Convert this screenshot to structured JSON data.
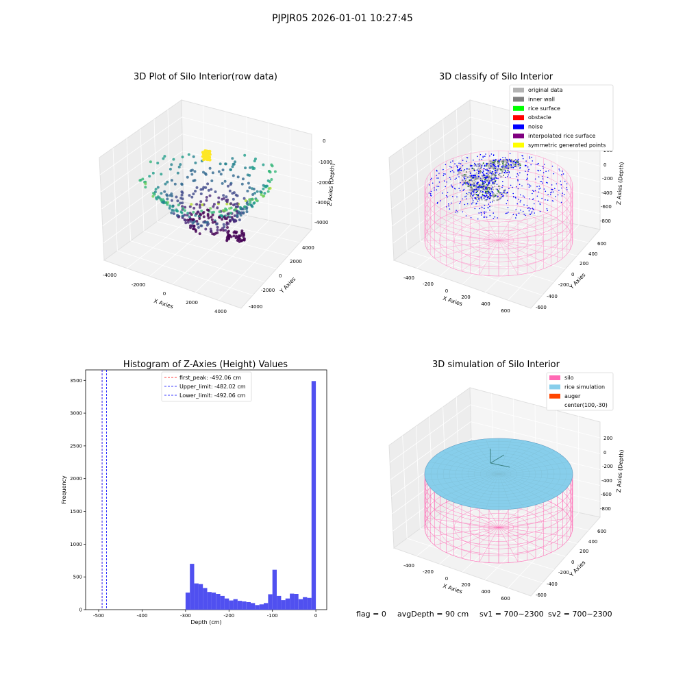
{
  "suptitle": "PJPJR05 2026-01-01 10:27:45",
  "footer": {
    "flag": "flag = 0",
    "avg_depth": "avgDepth = 90 cm",
    "sv1": "sv1 = 700~2300",
    "sv2": "sv2 = 700~2300"
  },
  "colors": {
    "original_data": "#b3b3b3",
    "inner_wall": "#808080",
    "rice_surface": "#00ff00",
    "obstacle": "#ff0000",
    "noise": "#0000ff",
    "interpolated_rice_surface": "#800080",
    "symmetric_generated_points": "#ffff00",
    "silo": "#ff69b4",
    "rice_simulation": "#87ceeb",
    "auger": "#ff4500",
    "histogram_bar": "#5050f0"
  },
  "chart_data": [
    {
      "type": "scatter",
      "title": "3D Plot of Silo Interior(row data)",
      "xlabel": "X Axies",
      "ylabel": "Y Axies",
      "zlabel": "Z Axies (Depth)",
      "x_ticks": [
        "-4000",
        "-2000",
        "0",
        "2000",
        "4000"
      ],
      "y_ticks": [
        "-4000",
        "-2000",
        "0",
        "2000",
        "4000"
      ],
      "z_ticks": [
        "0",
        "-1000",
        "-2000",
        "-3000",
        "-4000"
      ],
      "xlim": [
        -5000,
        5000
      ],
      "ylim": [
        -5000,
        5000
      ],
      "zlim": [
        -4700,
        400
      ],
      "grid": true,
      "colormap": "viridis",
      "series": [
        {
          "points": [
            {
              "x": -1500,
              "y": 0,
              "z": -300
            },
            {
              "x": 1000,
              "y": -500,
              "z": -3200
            },
            {
              "x": -4200,
              "y": 500,
              "z": -2200
            },
            {
              "x": 4000,
              "y": 200,
              "z": -2100
            },
            {
              "x": 2500,
              "y": 1500,
              "z": -4300
            },
            {
              "x": 0,
              "y": 3500,
              "z": -1000
            },
            {
              "x": -2500,
              "y": -2000,
              "z": -3000
            }
          ]
        }
      ]
    },
    {
      "type": "scatter",
      "title": "3D classify of Silo Interior",
      "xlabel": "X Axies",
      "ylabel": "Y Axies",
      "zlabel": "Z Axies (Depth)",
      "x_ticks": [
        "-400",
        "-200",
        "0",
        "200",
        "400",
        "600"
      ],
      "y_ticks": [
        "-600",
        "-400",
        "-200",
        "0",
        "200",
        "400",
        "600"
      ],
      "z_ticks": [
        "200",
        "0",
        "-200",
        "-400",
        "-600",
        "-800"
      ],
      "xlim": [
        -550,
        750
      ],
      "ylim": [
        -650,
        650
      ],
      "zlim": [
        -950,
        350
      ],
      "grid": true,
      "legend_position": "top-right",
      "legend": [
        "original data",
        "inner wall",
        "rice surface",
        "obstacle",
        "noise",
        "interpolated rice surface",
        "symmetric generated points"
      ]
    },
    {
      "type": "bar",
      "title": "Histogram of Z-Axies (Height) Values",
      "xlabel": "Depth (cm)",
      "ylabel": "Frequency",
      "x_ticks": [
        "-500",
        "-400",
        "-300",
        "-200",
        "-100",
        "0"
      ],
      "y_ticks": [
        "0",
        "500",
        "1000",
        "1500",
        "2000",
        "2500",
        "3000",
        "3500"
      ],
      "xlim": [
        -530,
        25
      ],
      "ylim": [
        0,
        3660
      ],
      "bin_width": 10,
      "bin_starts": [
        -300,
        -290,
        -280,
        -270,
        -260,
        -250,
        -240,
        -230,
        -220,
        -210,
        -200,
        -190,
        -180,
        -170,
        -160,
        -150,
        -140,
        -130,
        -120,
        -110,
        -100,
        -90,
        -80,
        -70,
        -60,
        -50,
        -40,
        -30,
        -20,
        -10
      ],
      "values": [
        260,
        700,
        400,
        390,
        330,
        270,
        260,
        240,
        210,
        170,
        140,
        160,
        135,
        125,
        115,
        100,
        70,
        80,
        100,
        235,
        610,
        210,
        145,
        170,
        245,
        240,
        160,
        190,
        180,
        3490
      ],
      "legend_position": "top-center",
      "legend": [
        "first_peak: -492.06 cm",
        "Upper_limit: -482.02 cm",
        "Lower_limit: -492.06 cm"
      ],
      "vlines": [
        {
          "x": -492.06,
          "color": "#ff0000"
        },
        {
          "x": -482.02,
          "color": "#0000ff"
        },
        {
          "x": -492.06,
          "color": "#0000ff"
        }
      ]
    },
    {
      "type": "scatter",
      "title": "3D simulation of Silo Interior",
      "xlabel": "X Axies",
      "ylabel": "Y Axies",
      "zlabel": "Z Axies (Depth)",
      "x_ticks": [
        "-400",
        "-200",
        "0",
        "200",
        "400",
        "600"
      ],
      "y_ticks": [
        "-600",
        "-400",
        "-200",
        "0",
        "200",
        "400",
        "600"
      ],
      "z_ticks": [
        "200",
        "0",
        "-200",
        "-400",
        "-600",
        "-800"
      ],
      "xlim": [
        -550,
        750
      ],
      "ylim": [
        -650,
        650
      ],
      "zlim": [
        -950,
        350
      ],
      "grid": true,
      "legend_position": "top-right",
      "legend": [
        "silo",
        "rice simulation",
        "auger",
        "center(100,-30)"
      ],
      "avg_depth": 90
    }
  ]
}
